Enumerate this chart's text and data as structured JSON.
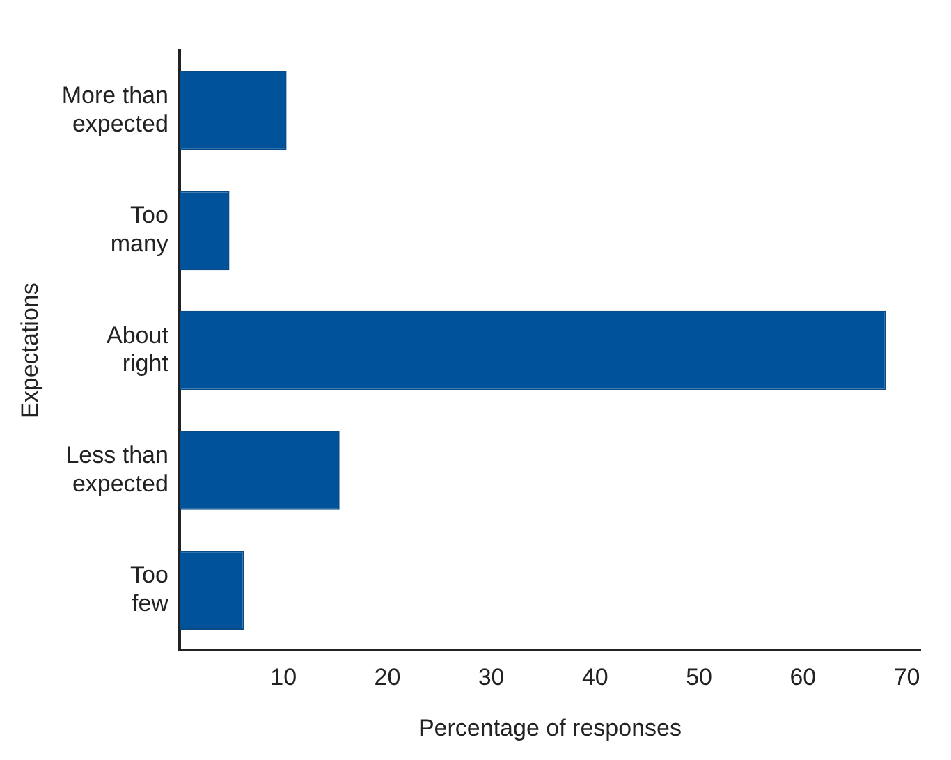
{
  "chart_data": {
    "type": "bar",
    "orientation": "horizontal",
    "xlabel": "Percentage of responses",
    "ylabel": "Expectations",
    "categories": [
      "More than expected",
      "Too many",
      "About right",
      "Less than expected",
      "Too few"
    ],
    "values": [
      10.3,
      4.8,
      68.0,
      15.4,
      6.2
    ],
    "color": "#00529b",
    "xlim": [
      0,
      71.3
    ],
    "xticks": [
      10,
      20,
      30,
      40,
      50,
      60,
      70
    ],
    "grid": false,
    "legend": false
  }
}
